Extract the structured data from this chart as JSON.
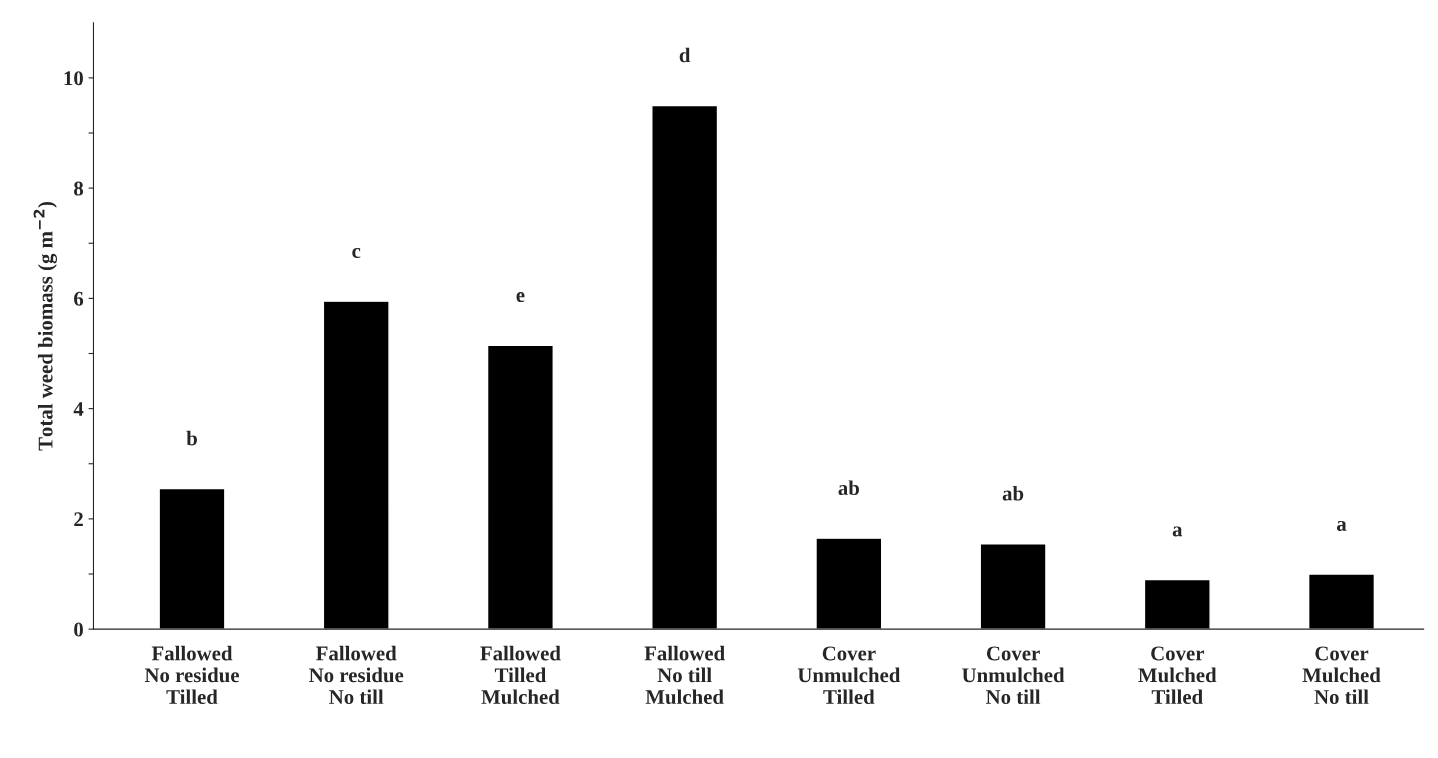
{
  "chart_data": {
    "type": "bar",
    "categories": [
      "Fallowed\nNo residue\nTilled",
      "Fallowed\nNo residue\nNo till",
      "Fallowed\nTilled\nMulched",
      "Fallowed\nNo till\nMulched",
      "Cover\nUnmulched\nTilled",
      "Cover\nUnmulched\nNo till",
      "Cover\nMulched\nTilled",
      "Cover\nMulched\nNo till"
    ],
    "values": [
      2.55,
      5.95,
      5.15,
      9.5,
      1.65,
      1.55,
      0.9,
      1.0
    ],
    "value_labels": [
      "b",
      "c",
      "e",
      "d",
      "ab",
      "ab",
      "a",
      "a"
    ],
    "color": "#000000",
    "ylabel": "Total weed biomass (g m$^{−2}$)",
    "ylim": [
      0,
      11
    ],
    "yticks": [
      0,
      {
        "value": 1,
        "label": null
      },
      2,
      {
        "value": 3,
        "label": null
      },
      4,
      {
        "value": 5,
        "label": null
      },
      6,
      {
        "value": 7,
        "label": null
      },
      8,
      {
        "value": 9,
        "label": null
      },
      10
    ],
    "grid": false,
    "legend": false
  }
}
